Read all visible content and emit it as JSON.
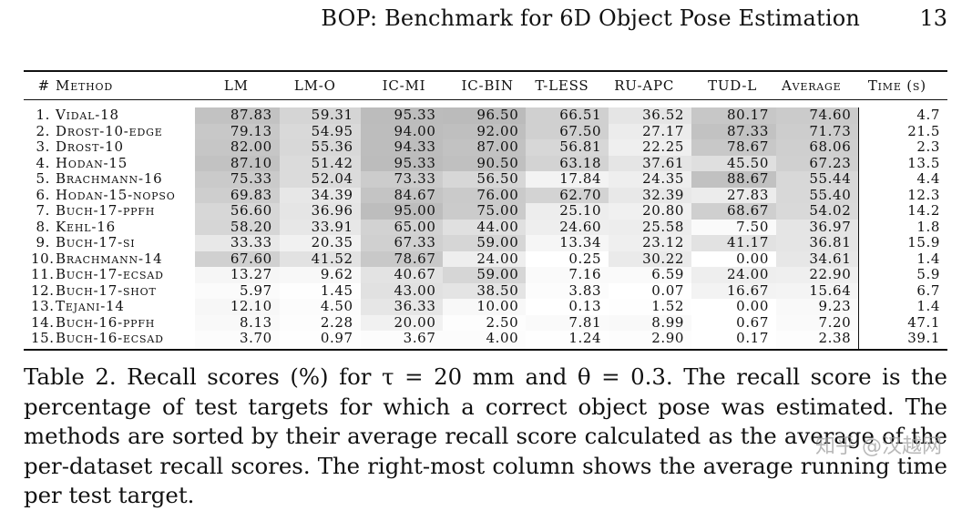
{
  "header": {
    "running_title": "BOP: Benchmark for 6D Object Pose Estimation",
    "page_number": "13"
  },
  "table": {
    "columns": [
      "#",
      "Method",
      "LM",
      "LM-O",
      "IC-MI",
      "IC-BIN",
      "T-LESS",
      "RU-APC",
      "TUD-L",
      "Average",
      "Time (s)"
    ],
    "rows": [
      {
        "rank": "1.",
        "method": "Vidal-18",
        "values": [
          "87.83",
          "59.31",
          "95.33",
          "96.50",
          "66.51",
          "36.52",
          "80.17"
        ],
        "average": "74.60",
        "time": "4.7"
      },
      {
        "rank": "2.",
        "method": "Drost-10-edge",
        "values": [
          "79.13",
          "54.95",
          "94.00",
          "92.00",
          "67.50",
          "27.17",
          "87.33"
        ],
        "average": "71.73",
        "time": "21.5"
      },
      {
        "rank": "3.",
        "method": "Drost-10",
        "values": [
          "82.00",
          "55.36",
          "94.33",
          "87.00",
          "56.81",
          "22.25",
          "78.67"
        ],
        "average": "68.06",
        "time": "2.3"
      },
      {
        "rank": "4.",
        "method": "Hodan-15",
        "values": [
          "87.10",
          "51.42",
          "95.33",
          "90.50",
          "63.18",
          "37.61",
          "45.50"
        ],
        "average": "67.23",
        "time": "13.5"
      },
      {
        "rank": "5.",
        "method": "Brachmann-16",
        "values": [
          "75.33",
          "52.04",
          "73.33",
          "56.50",
          "17.84",
          "24.35",
          "88.67"
        ],
        "average": "55.44",
        "time": "4.4"
      },
      {
        "rank": "6.",
        "method": "Hodan-15-nopso",
        "values": [
          "69.83",
          "34.39",
          "84.67",
          "76.00",
          "62.70",
          "32.39",
          "27.83"
        ],
        "average": "55.40",
        "time": "12.3"
      },
      {
        "rank": "7.",
        "method": "Buch-17-ppfh",
        "values": [
          "56.60",
          "36.96",
          "95.00",
          "75.00",
          "25.10",
          "20.80",
          "68.67"
        ],
        "average": "54.02",
        "time": "14.2"
      },
      {
        "rank": "8.",
        "method": "Kehl-16",
        "values": [
          "58.20",
          "33.91",
          "65.00",
          "44.00",
          "24.60",
          "25.58",
          "7.50"
        ],
        "average": "36.97",
        "time": "1.8"
      },
      {
        "rank": "9.",
        "method": "Buch-17-si",
        "values": [
          "33.33",
          "20.35",
          "67.33",
          "59.00",
          "13.34",
          "23.12",
          "41.17"
        ],
        "average": "36.81",
        "time": "15.9"
      },
      {
        "rank": "10.",
        "method": "Brachmann-14",
        "values": [
          "67.60",
          "41.52",
          "78.67",
          "24.00",
          "0.25",
          "30.22",
          "0.00"
        ],
        "average": "34.61",
        "time": "1.4"
      },
      {
        "rank": "11.",
        "method": "Buch-17-ecsad",
        "values": [
          "13.27",
          "9.62",
          "40.67",
          "59.00",
          "7.16",
          "6.59",
          "24.00"
        ],
        "average": "22.90",
        "time": "5.9"
      },
      {
        "rank": "12.",
        "method": "Buch-17-shot",
        "values": [
          "5.97",
          "1.45",
          "43.00",
          "38.50",
          "3.83",
          "0.07",
          "16.67"
        ],
        "average": "15.64",
        "time": "6.7"
      },
      {
        "rank": "13.",
        "method": "Tejani-14",
        "values": [
          "12.10",
          "4.50",
          "36.33",
          "10.00",
          "0.13",
          "1.52",
          "0.00"
        ],
        "average": "9.23",
        "time": "1.4"
      },
      {
        "rank": "14.",
        "method": "Buch-16-ppfh",
        "values": [
          "8.13",
          "2.28",
          "20.00",
          "2.50",
          "7.81",
          "8.99",
          "0.67"
        ],
        "average": "7.20",
        "time": "47.1"
      },
      {
        "rank": "15.",
        "method": "Buch-16-ecsad",
        "values": [
          "3.70",
          "0.97",
          "3.67",
          "4.00",
          "1.24",
          "2.90",
          "0.17"
        ],
        "average": "2.38",
        "time": "39.1"
      }
    ]
  },
  "caption": "Table 2. Recall scores (%) for τ = 20 mm and θ = 0.3. The recall score is the percentage of test targets for which a correct object pose was estimated. The methods are sorted by their average recall score calculated as the average of the per-dataset recall scores. The right-most column shows the average running time per test target.",
  "watermark": "知乎 @汉越网"
}
